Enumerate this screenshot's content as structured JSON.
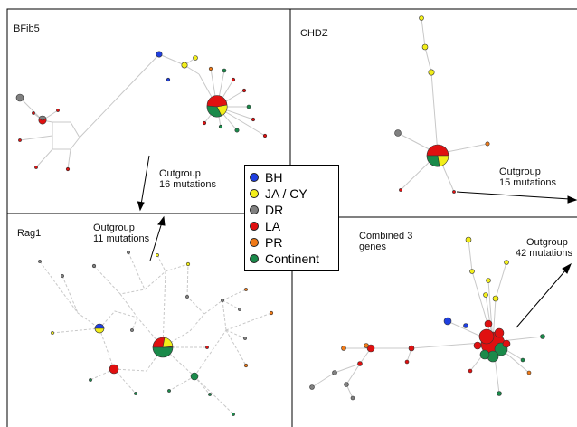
{
  "panels": {
    "bfib5": {
      "title": "BFib5",
      "outgroup_label": "Outgroup",
      "outgroup_mutations": "16 mutations"
    },
    "chdz": {
      "title": "CHDZ",
      "outgroup_label": "Outgroup",
      "outgroup_mutations": "15 mutations"
    },
    "rag1": {
      "title": "Rag1",
      "outgroup_label": "Outgroup",
      "outgroup_mutations": "11 mutations"
    },
    "combined": {
      "title_line1": "Combined 3",
      "title_line2": "genes",
      "outgroup_label": "Outgroup",
      "outgroup_mutations": "42 mutations"
    }
  },
  "legend": [
    {
      "label": "BH",
      "color": "#1f3fe0"
    },
    {
      "label": "JA / CY",
      "color": "#f2ee1a"
    },
    {
      "label": "DR",
      "color": "#808080"
    },
    {
      "label": "LA",
      "color": "#e01010"
    },
    {
      "label": "PR",
      "color": "#f07a18"
    },
    {
      "label": "Continent",
      "color": "#1a8a4a"
    }
  ],
  "colors": {
    "BH": "#1f3fe0",
    "JA": "#f2ee1a",
    "DR": "#808080",
    "LA": "#e01010",
    "PR": "#f07a18",
    "Continent": "#1a8a4a",
    "edge": "#c8c8c8",
    "frame": "#000000"
  }
}
